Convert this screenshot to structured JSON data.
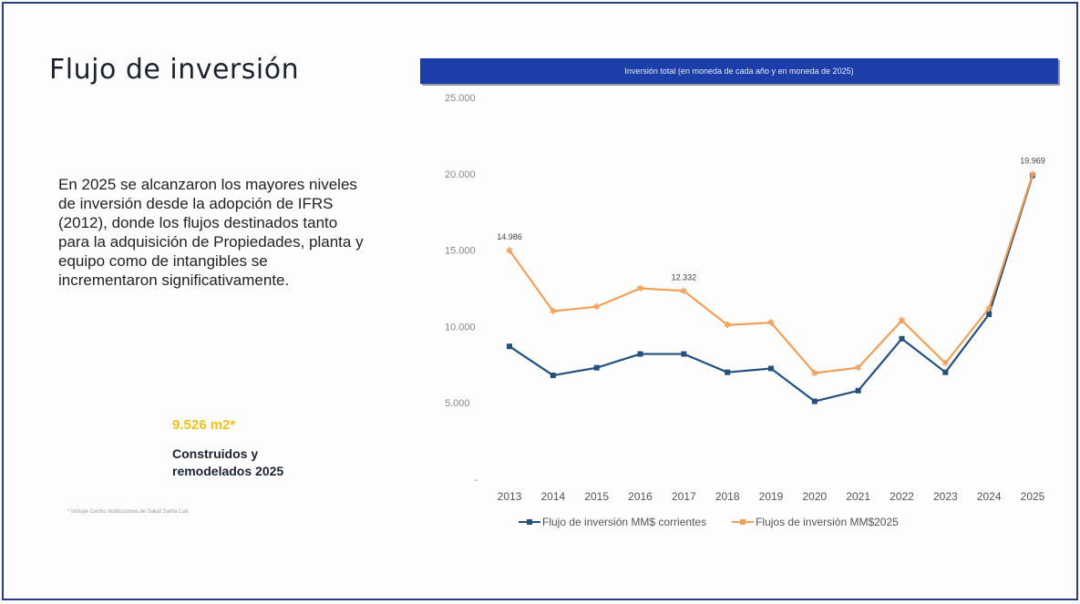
{
  "slide": {
    "title": "Flujo de inversión",
    "body": "En 2025 se alcanzaron los mayores niveles de inversión desde la adopción de IFRS (2012), donde los flujos destinados tanto para la adquisición de Propiedades, planta y equipo como de intangibles se incrementaron significativamente.",
    "stat_value": "9.526 m2*",
    "stat_label": "Construidos y remodelados 2025",
    "footnote": "* Incluye Centro Instituciones de Salud Santa Luis"
  },
  "colors": {
    "banner": "#1c3ea8",
    "series_current": "#24507e",
    "series_2025": "#f0a05a",
    "accent": "#f2c21a"
  },
  "chart_data": {
    "type": "line",
    "title": "Inversión total (en moneda de cada año y en moneda de 2025)",
    "categories": [
      "2013",
      "2014",
      "2015",
      "2016",
      "2017",
      "2018",
      "2019",
      "2020",
      "2021",
      "2022",
      "2023",
      "2024",
      "2025"
    ],
    "y_ticks": [
      "25.000",
      "20.000",
      "15.000",
      "10.000",
      "5.000",
      "-"
    ],
    "ylim": [
      0,
      25000
    ],
    "grid": false,
    "legend_position": "bottom",
    "series": [
      {
        "name": "Flujo de inversión MM$ corrientes",
        "color": "#24507e",
        "values": [
          8700,
          6800,
          7300,
          8200,
          8200,
          7000,
          7250,
          5100,
          5800,
          9200,
          7000,
          10800,
          19900
        ]
      },
      {
        "name": "Flujos de inversión MM$2025",
        "color": "#f0a05a",
        "values": [
          14986,
          11000,
          11300,
          12500,
          12332,
          10100,
          10250,
          6950,
          7300,
          10400,
          7600,
          11200,
          19969
        ]
      }
    ],
    "data_labels": [
      {
        "series": 1,
        "index": 0,
        "text": "14.986"
      },
      {
        "series": 1,
        "index": 4,
        "text": "12.332"
      },
      {
        "series": 1,
        "index": 12,
        "text": "19.969"
      }
    ]
  }
}
